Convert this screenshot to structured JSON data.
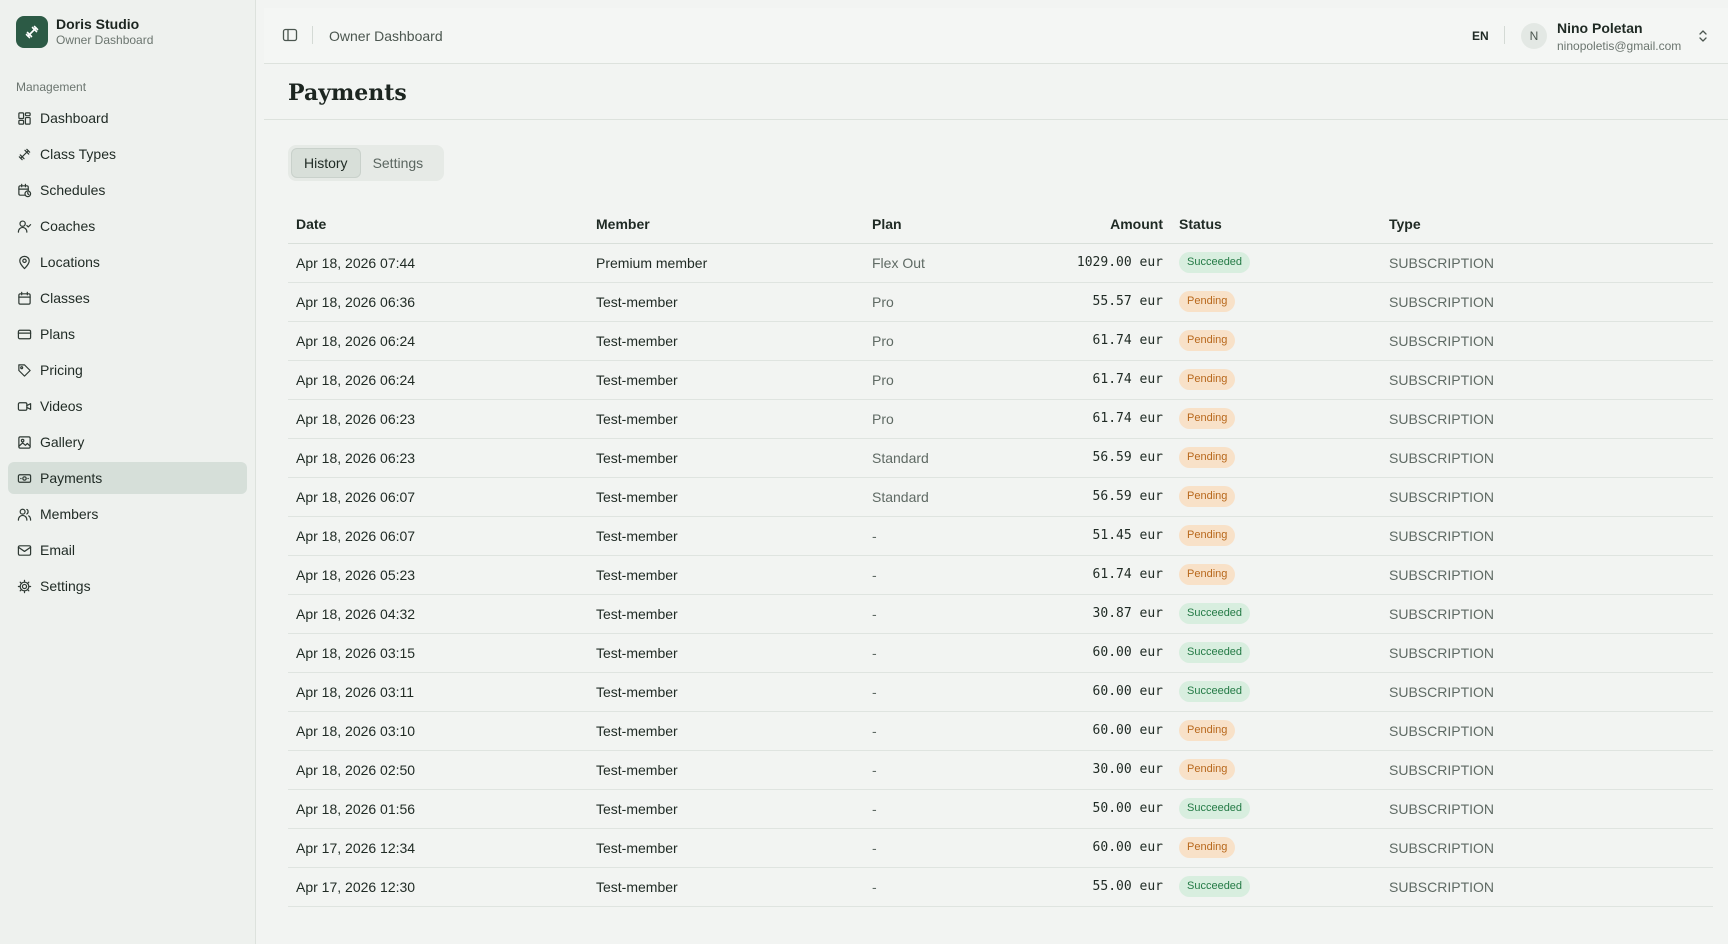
{
  "brand": {
    "name": "Doris Studio",
    "subtitle": "Owner Dashboard"
  },
  "sidebar": {
    "section_label": "Management",
    "items": [
      {
        "label": "Dashboard",
        "icon": "dashboard-icon"
      },
      {
        "label": "Class Types",
        "icon": "dumbbell-icon"
      },
      {
        "label": "Schedules",
        "icon": "calendar-clock-icon"
      },
      {
        "label": "Coaches",
        "icon": "user-check-icon"
      },
      {
        "label": "Locations",
        "icon": "map-pin-icon"
      },
      {
        "label": "Classes",
        "icon": "calendar-icon"
      },
      {
        "label": "Plans",
        "icon": "credit-card-icon"
      },
      {
        "label": "Pricing",
        "icon": "tag-icon"
      },
      {
        "label": "Videos",
        "icon": "video-icon"
      },
      {
        "label": "Gallery",
        "icon": "image-icon"
      },
      {
        "label": "Payments",
        "icon": "banknote-icon",
        "active": true
      },
      {
        "label": "Members",
        "icon": "users-icon"
      },
      {
        "label": "Email",
        "icon": "mail-icon"
      },
      {
        "label": "Settings",
        "icon": "gear-icon"
      }
    ]
  },
  "header": {
    "breadcrumb": "Owner Dashboard",
    "language": "EN",
    "user": {
      "initial": "N",
      "name": "Nino Poletan",
      "email": "ninopoletis@gmail.com"
    }
  },
  "main": {
    "title": "Payments",
    "tabs": [
      {
        "label": "History",
        "active": true
      },
      {
        "label": "Settings"
      }
    ],
    "table": {
      "columns": [
        "Date",
        "Member",
        "Plan",
        "Amount",
        "Status",
        "Type"
      ],
      "rows": [
        {
          "date": "Apr 18, 2026 07:44",
          "member": "Premium member",
          "plan": "Flex Out",
          "amount": "1029.00 eur",
          "status": "Succeeded",
          "type": "SUBSCRIPTION"
        },
        {
          "date": "Apr 18, 2026 06:36",
          "member": "Test-member",
          "plan": "Pro",
          "amount": "55.57 eur",
          "status": "Pending",
          "type": "SUBSCRIPTION"
        },
        {
          "date": "Apr 18, 2026 06:24",
          "member": "Test-member",
          "plan": "Pro",
          "amount": "61.74 eur",
          "status": "Pending",
          "type": "SUBSCRIPTION"
        },
        {
          "date": "Apr 18, 2026 06:24",
          "member": "Test-member",
          "plan": "Pro",
          "amount": "61.74 eur",
          "status": "Pending",
          "type": "SUBSCRIPTION"
        },
        {
          "date": "Apr 18, 2026 06:23",
          "member": "Test-member",
          "plan": "Pro",
          "amount": "61.74 eur",
          "status": "Pending",
          "type": "SUBSCRIPTION"
        },
        {
          "date": "Apr 18, 2026 06:23",
          "member": "Test-member",
          "plan": "Standard",
          "amount": "56.59 eur",
          "status": "Pending",
          "type": "SUBSCRIPTION"
        },
        {
          "date": "Apr 18, 2026 06:07",
          "member": "Test-member",
          "plan": "Standard",
          "amount": "56.59 eur",
          "status": "Pending",
          "type": "SUBSCRIPTION"
        },
        {
          "date": "Apr 18, 2026 06:07",
          "member": "Test-member",
          "plan": "-",
          "amount": "51.45 eur",
          "status": "Pending",
          "type": "SUBSCRIPTION"
        },
        {
          "date": "Apr 18, 2026 05:23",
          "member": "Test-member",
          "plan": "-",
          "amount": "61.74 eur",
          "status": "Pending",
          "type": "SUBSCRIPTION"
        },
        {
          "date": "Apr 18, 2026 04:32",
          "member": "Test-member",
          "plan": "-",
          "amount": "30.87 eur",
          "status": "Succeeded",
          "type": "SUBSCRIPTION"
        },
        {
          "date": "Apr 18, 2026 03:15",
          "member": "Test-member",
          "plan": "-",
          "amount": "60.00 eur",
          "status": "Succeeded",
          "type": "SUBSCRIPTION"
        },
        {
          "date": "Apr 18, 2026 03:11",
          "member": "Test-member",
          "plan": "-",
          "amount": "60.00 eur",
          "status": "Succeeded",
          "type": "SUBSCRIPTION"
        },
        {
          "date": "Apr 18, 2026 03:10",
          "member": "Test-member",
          "plan": "-",
          "amount": "60.00 eur",
          "status": "Pending",
          "type": "SUBSCRIPTION"
        },
        {
          "date": "Apr 18, 2026 02:50",
          "member": "Test-member",
          "plan": "-",
          "amount": "30.00 eur",
          "status": "Pending",
          "type": "SUBSCRIPTION"
        },
        {
          "date": "Apr 18, 2026 01:56",
          "member": "Test-member",
          "plan": "-",
          "amount": "50.00 eur",
          "status": "Succeeded",
          "type": "SUBSCRIPTION"
        },
        {
          "date": "Apr 17, 2026 12:34",
          "member": "Test-member",
          "plan": "-",
          "amount": "60.00 eur",
          "status": "Pending",
          "type": "SUBSCRIPTION"
        },
        {
          "date": "Apr 17, 2026 12:30",
          "member": "Test-member",
          "plan": "-",
          "amount": "55.00 eur",
          "status": "Succeeded",
          "type": "SUBSCRIPTION"
        }
      ]
    }
  },
  "colors": {
    "brand": "#2c5a45",
    "succeeded": "#237a45",
    "pending": "#b8681c",
    "active_nav": "#d6dfd9"
  }
}
